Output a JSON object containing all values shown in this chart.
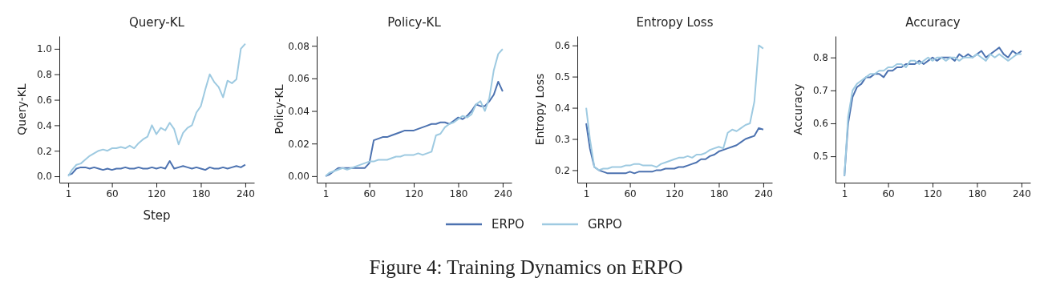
{
  "chart_data": [
    {
      "type": "line",
      "title": "Query-KL",
      "xlabel": "Step",
      "ylabel": "Query-KL",
      "x": [
        1,
        6,
        12,
        18,
        24,
        30,
        36,
        42,
        48,
        54,
        60,
        66,
        72,
        78,
        84,
        90,
        96,
        102,
        108,
        114,
        120,
        126,
        132,
        138,
        144,
        150,
        156,
        162,
        168,
        174,
        180,
        186,
        192,
        198,
        204,
        210,
        216,
        222,
        228,
        234,
        240
      ],
      "xlim": [
        -11,
        252
      ],
      "xticks": [
        1,
        60,
        120,
        180,
        240
      ],
      "ylim": [
        -0.05,
        1.1
      ],
      "yticks": [
        {
          "value": 0,
          "label": "0.0"
        },
        {
          "value": 0.2,
          "label": "0.2"
        },
        {
          "value": 0.4,
          "label": "0.4"
        },
        {
          "value": 0.6,
          "label": "0.6"
        },
        {
          "value": 0.8,
          "label": "0.8"
        },
        {
          "value": 1,
          "label": "1.0"
        }
      ],
      "series": [
        {
          "color": "#4c72b0",
          "values": [
            0.01,
            0.02,
            0.06,
            0.07,
            0.07,
            0.06,
            0.07,
            0.06,
            0.05,
            0.06,
            0.05,
            0.06,
            0.06,
            0.07,
            0.06,
            0.06,
            0.07,
            0.06,
            0.06,
            0.07,
            0.06,
            0.07,
            0.06,
            0.12,
            0.06,
            0.07,
            0.08,
            0.07,
            0.06,
            0.07,
            0.06,
            0.05,
            0.07,
            0.06,
            0.06,
            0.07,
            0.06,
            0.07,
            0.08,
            0.07,
            0.09
          ]
        },
        {
          "color": "#9ecae1",
          "values": [
            0,
            0.05,
            0.09,
            0.1,
            0.13,
            0.16,
            0.18,
            0.2,
            0.21,
            0.2,
            0.22,
            0.22,
            0.23,
            0.22,
            0.24,
            0.22,
            0.26,
            0.29,
            0.31,
            0.4,
            0.33,
            0.38,
            0.36,
            0.42,
            0.37,
            0.25,
            0.34,
            0.38,
            0.4,
            0.5,
            0.55,
            0.68,
            0.8,
            0.74,
            0.7,
            0.62,
            0.75,
            0.73,
            0.76,
            1.0,
            1.04
          ]
        }
      ]
    },
    {
      "type": "line",
      "title": "Policy-KL",
      "ylabel": "Policy-KL",
      "legend": "bottom",
      "annotations": [
        "Figure 4: Training Dynamics on ERPO"
      ],
      "x": [
        1,
        6,
        12,
        18,
        24,
        30,
        36,
        42,
        48,
        54,
        60,
        66,
        72,
        78,
        84,
        90,
        96,
        102,
        108,
        114,
        120,
        126,
        132,
        138,
        144,
        150,
        156,
        162,
        168,
        174,
        180,
        186,
        192,
        198,
        204,
        210,
        216,
        222,
        228,
        234,
        240
      ],
      "xlim": [
        -11,
        252
      ],
      "xticks": [
        1,
        60,
        120,
        180,
        240
      ],
      "ylim": [
        -0.004,
        0.086
      ],
      "yticks": [
        {
          "value": 0,
          "label": "0.00"
        },
        {
          "value": 0.02,
          "label": "0.02"
        },
        {
          "value": 0.04,
          "label": "0.04"
        },
        {
          "value": 0.06,
          "label": "0.06"
        },
        {
          "value": 0.08,
          "label": "0.08"
        }
      ],
      "series": [
        {
          "name": "ERPO",
          "color": "#4c72b0",
          "values": [
            0,
            0.001,
            0.003,
            0.005,
            0.005,
            0.005,
            0.005,
            0.005,
            0.005,
            0.005,
            0.008,
            0.022,
            0.023,
            0.024,
            0.024,
            0.025,
            0.026,
            0.027,
            0.028,
            0.028,
            0.028,
            0.029,
            0.03,
            0.031,
            0.032,
            0.032,
            0.033,
            0.033,
            0.032,
            0.034,
            0.036,
            0.035,
            0.037,
            0.04,
            0.044,
            0.043,
            0.043,
            0.046,
            0.05,
            0.058,
            0.052
          ]
        },
        {
          "name": "GRPO",
          "color": "#9ecae1",
          "values": [
            0,
            0.002,
            0.003,
            0.004,
            0.005,
            0.004,
            0.005,
            0.006,
            0.007,
            0.008,
            0.009,
            0.009,
            0.01,
            0.01,
            0.01,
            0.011,
            0.012,
            0.012,
            0.013,
            0.013,
            0.013,
            0.014,
            0.013,
            0.014,
            0.015,
            0.025,
            0.026,
            0.03,
            0.032,
            0.033,
            0.035,
            0.037,
            0.036,
            0.038,
            0.044,
            0.046,
            0.04,
            0.048,
            0.065,
            0.075,
            0.078
          ]
        }
      ]
    },
    {
      "type": "line",
      "title": "Entropy Loss",
      "ylabel": "Entropy Loss",
      "x": [
        1,
        6,
        12,
        18,
        24,
        30,
        36,
        42,
        48,
        54,
        60,
        66,
        72,
        78,
        84,
        90,
        96,
        102,
        108,
        114,
        120,
        126,
        132,
        138,
        144,
        150,
        156,
        162,
        168,
        174,
        180,
        186,
        192,
        198,
        204,
        210,
        216,
        222,
        228,
        234,
        240
      ],
      "xlim": [
        -11,
        252
      ],
      "xticks": [
        1,
        60,
        120,
        180,
        240
      ],
      "ylim": [
        0.16,
        0.63
      ],
      "yticks": [
        0.2,
        0.3,
        0.4,
        0.5,
        0.6
      ],
      "series": [
        {
          "color": "#4c72b0",
          "values": [
            0.35,
            0.27,
            0.21,
            0.2,
            0.195,
            0.19,
            0.19,
            0.19,
            0.19,
            0.19,
            0.195,
            0.19,
            0.195,
            0.195,
            0.195,
            0.195,
            0.2,
            0.2,
            0.205,
            0.205,
            0.205,
            0.21,
            0.21,
            0.215,
            0.22,
            0.225,
            0.235,
            0.235,
            0.245,
            0.25,
            0.26,
            0.265,
            0.27,
            0.275,
            0.28,
            0.29,
            0.3,
            0.305,
            0.31,
            0.335,
            0.33
          ]
        },
        {
          "color": "#9ecae1",
          "values": [
            0.4,
            0.3,
            0.21,
            0.2,
            0.205,
            0.205,
            0.21,
            0.21,
            0.21,
            0.215,
            0.215,
            0.22,
            0.22,
            0.215,
            0.215,
            0.215,
            0.21,
            0.22,
            0.225,
            0.23,
            0.235,
            0.24,
            0.24,
            0.245,
            0.24,
            0.25,
            0.25,
            0.255,
            0.265,
            0.27,
            0.275,
            0.27,
            0.32,
            0.33,
            0.325,
            0.335,
            0.345,
            0.35,
            0.42,
            0.6,
            0.59
          ]
        }
      ]
    },
    {
      "type": "line",
      "title": "Accuracy",
      "ylabel": "Accuracy",
      "x": [
        1,
        6,
        12,
        18,
        24,
        30,
        36,
        42,
        48,
        54,
        60,
        66,
        72,
        78,
        84,
        90,
        96,
        102,
        108,
        114,
        120,
        126,
        132,
        138,
        144,
        150,
        156,
        162,
        168,
        174,
        180,
        186,
        192,
        198,
        204,
        210,
        216,
        222,
        228,
        234,
        240
      ],
      "xlim": [
        -11,
        252
      ],
      "xticks": [
        1,
        60,
        120,
        180,
        240
      ],
      "ylim": [
        0.42,
        0.865
      ],
      "yticks": [
        0.5,
        0.6,
        0.7,
        0.8
      ],
      "series": [
        {
          "color": "#4c72b0",
          "values": [
            0.44,
            0.6,
            0.68,
            0.71,
            0.72,
            0.74,
            0.74,
            0.75,
            0.75,
            0.74,
            0.76,
            0.76,
            0.77,
            0.77,
            0.78,
            0.78,
            0.78,
            0.79,
            0.78,
            0.79,
            0.8,
            0.79,
            0.8,
            0.8,
            0.8,
            0.79,
            0.81,
            0.8,
            0.81,
            0.8,
            0.81,
            0.82,
            0.8,
            0.81,
            0.82,
            0.83,
            0.81,
            0.8,
            0.82,
            0.81,
            0.82
          ]
        },
        {
          "color": "#9ecae1",
          "values": [
            0.44,
            0.62,
            0.7,
            0.72,
            0.73,
            0.74,
            0.75,
            0.75,
            0.76,
            0.76,
            0.77,
            0.77,
            0.78,
            0.78,
            0.77,
            0.79,
            0.79,
            0.78,
            0.79,
            0.8,
            0.79,
            0.8,
            0.8,
            0.79,
            0.8,
            0.8,
            0.79,
            0.8,
            0.8,
            0.8,
            0.81,
            0.8,
            0.79,
            0.81,
            0.8,
            0.81,
            0.8,
            0.79,
            0.8,
            0.81,
            0.81
          ]
        }
      ]
    }
  ]
}
